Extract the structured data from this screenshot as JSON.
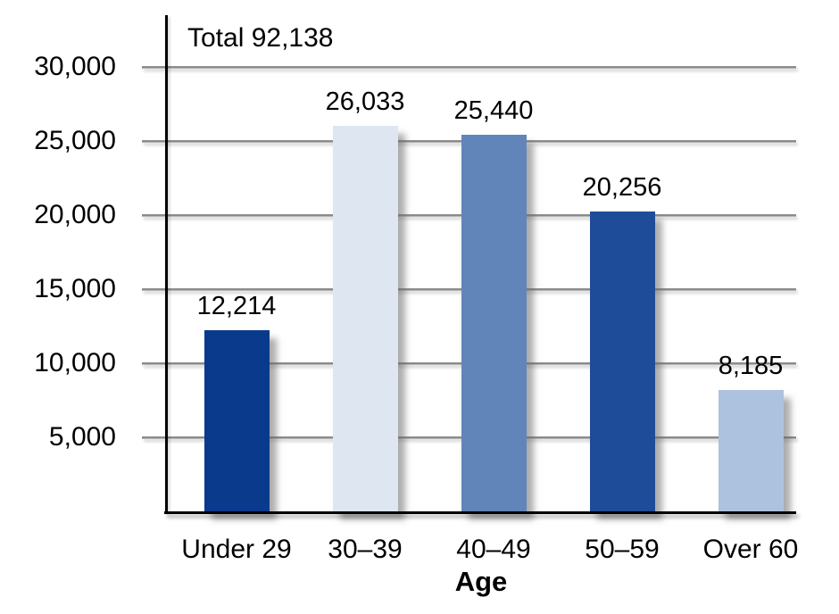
{
  "chart_data": {
    "type": "bar",
    "title": "Total 92,138",
    "xlabel": "Age",
    "ylabel": "",
    "categories": [
      "Under 29",
      "30–39",
      "40–49",
      "50–59",
      "Over 60"
    ],
    "values": [
      12214,
      26033,
      25440,
      20256,
      8185
    ],
    "value_labels": [
      "12,214",
      "26,033",
      "25,440",
      "20,256",
      "8,185"
    ],
    "bar_colors": [
      "#0a3a8c",
      "#dde6f1",
      "#6285b9",
      "#1e4c98",
      "#adc2de"
    ],
    "total": 92138,
    "ylim": [
      0,
      30000
    ],
    "yticks": [
      {
        "value": 5000,
        "label": "5,000"
      },
      {
        "value": 10000,
        "label": "10,000"
      },
      {
        "value": 15000,
        "label": "15,000"
      },
      {
        "value": 20000,
        "label": "20,000"
      },
      {
        "value": 25000,
        "label": "25,000"
      },
      {
        "value": 30000,
        "label": "30,000"
      }
    ],
    "grid": true,
    "legend_position": "none"
  },
  "colors": {
    "background": "#ffffff",
    "axis": "#000000",
    "gridline": "#8a8a8a",
    "text": "#000000"
  }
}
